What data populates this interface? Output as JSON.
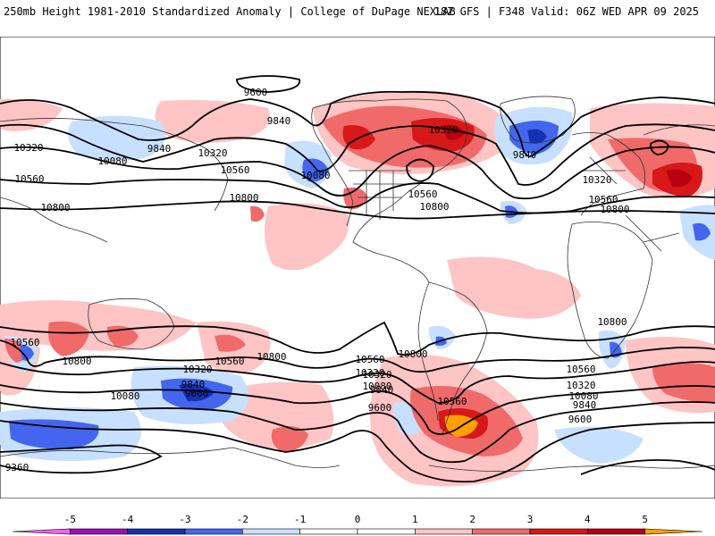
{
  "header": {
    "left_title": "250mb Height 1981-2010 Standardized Anomaly | College of DuPage NEXLAB",
    "right_title": "18Z GFS | F348 Valid: 06Z WED APR 09 2025"
  },
  "colors": {
    "neg5": "#ee66ee",
    "neg4": "#9910bb",
    "neg3": "#1530b0",
    "neg2": "#4466ee",
    "neg1": "#c8e0ff",
    "pos1": "#ffc4c4",
    "pos2": "#f06a6a",
    "pos3": "#d81818",
    "pos4": "#b80010",
    "pos5": "#ffa000",
    "ocean": "#ffffff",
    "coast": "#333333",
    "contour": "#000000"
  },
  "contour_labels": [
    {
      "id": "c-9600-a",
      "text": "9600"
    },
    {
      "id": "c-9840-a",
      "text": "9840"
    },
    {
      "id": "c-9840-b",
      "text": "9840"
    },
    {
      "id": "c-10320-a",
      "text": "10320"
    },
    {
      "id": "c-10320-b",
      "text": "10320"
    },
    {
      "id": "c-10080-a",
      "text": "10080"
    },
    {
      "id": "c-10080-b",
      "text": "10080"
    },
    {
      "id": "c-10560-a",
      "text": "10560"
    },
    {
      "id": "c-10560-b",
      "text": "10560"
    },
    {
      "id": "c-10800-a",
      "text": "10800"
    },
    {
      "id": "c-10800-b",
      "text": "10800"
    },
    {
      "id": "c-10320-c",
      "text": "10320"
    },
    {
      "id": "c-9840-c",
      "text": "9840"
    },
    {
      "id": "c-10560-c",
      "text": "10560"
    },
    {
      "id": "c-10800-c",
      "text": "10800"
    },
    {
      "id": "c-10320-d",
      "text": "10320"
    },
    {
      "id": "c-10560-d",
      "text": "10560"
    },
    {
      "id": "c-10800-d",
      "text": "10800"
    },
    {
      "id": "c-10560-e",
      "text": "10560"
    },
    {
      "id": "c-10800-e",
      "text": "10800"
    },
    {
      "id": "c-10560-f",
      "text": "10560"
    },
    {
      "id": "c-10800-f",
      "text": "10800"
    },
    {
      "id": "c-10320-e",
      "text": "10320"
    },
    {
      "id": "c-10560-g",
      "text": "10560"
    },
    {
      "id": "c-10800-g",
      "text": "10800"
    },
    {
      "id": "c-10320-f",
      "text": "10320"
    },
    {
      "id": "c-10080-c",
      "text": "10080"
    },
    {
      "id": "c-9840-d",
      "text": "9840"
    },
    {
      "id": "c-9600-b",
      "text": "9600"
    },
    {
      "id": "c-10320-g",
      "text": "10320"
    },
    {
      "id": "c-10080-d",
      "text": "10080"
    },
    {
      "id": "c-9840-e",
      "text": "9840"
    },
    {
      "id": "c-9600-c",
      "text": "9600"
    },
    {
      "id": "c-10560-h",
      "text": "10560"
    },
    {
      "id": "c-10560-i",
      "text": "10560"
    },
    {
      "id": "c-10320-h",
      "text": "10320"
    },
    {
      "id": "c-10080-e",
      "text": "10080"
    },
    {
      "id": "c-9840-f",
      "text": "9840"
    },
    {
      "id": "c-9600-d",
      "text": "9600"
    },
    {
      "id": "c-10800-h",
      "text": "10800"
    },
    {
      "id": "c-9360",
      "text": "9360"
    }
  ],
  "colorbar": {
    "ticks": [
      "-5",
      "-4",
      "-3",
      "-2",
      "-1",
      "0",
      "1",
      "2",
      "3",
      "4",
      "5"
    ]
  }
}
